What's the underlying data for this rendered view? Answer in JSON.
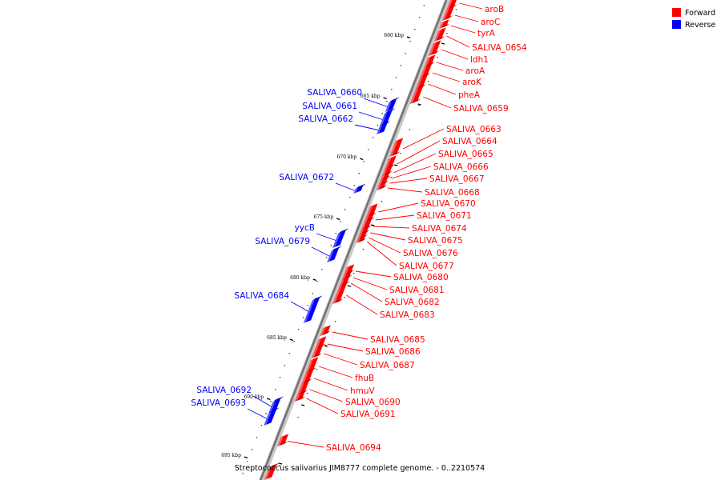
{
  "legend": {
    "forward_label": "Forward",
    "reverse_label": "Reverse",
    "forward_color": "#ff0000",
    "reverse_color": "#0000ff"
  },
  "caption": "Streptococcus salivarius JIM8777 complete genome. - 0..2210574",
  "ticks": [
    "660 kbp",
    "665 kbp",
    "670 kbp",
    "675 kbp",
    "680 kbp",
    "685 kbp",
    "690 kbp",
    "695 kbp"
  ],
  "forward_genes": [
    "aroB",
    "aroC",
    "tyrA",
    "SALIVA_0654",
    "ldh1",
    "aroA",
    "aroK",
    "pheA",
    "SALIVA_0659",
    "SALIVA_0663",
    "SALIVA_0664",
    "SALIVA_0665",
    "SALIVA_0666",
    "SALIVA_0667",
    "SALIVA_0668",
    "SALIVA_0670",
    "SALIVA_0671",
    "SALIVA_0674",
    "SALIVA_0675",
    "SALIVA_0676",
    "SALIVA_0677",
    "SALIVA_0680",
    "SALIVA_0681",
    "SALIVA_0682",
    "SALIVA_0683",
    "SALIVA_0685",
    "SALIVA_0686",
    "SALIVA_0687",
    "fhuB",
    "hmuV",
    "SALIVA_0690",
    "SALIVA_0691",
    "SALIVA_0694"
  ],
  "reverse_genes": [
    "SALIVA_0660",
    "SALIVA_0661",
    "SALIVA_0662",
    "SALIVA_0672",
    "yycB",
    "SALIVA_0679",
    "SALIVA_0684",
    "SALIVA_0692",
    "SALIVA_0693"
  ]
}
